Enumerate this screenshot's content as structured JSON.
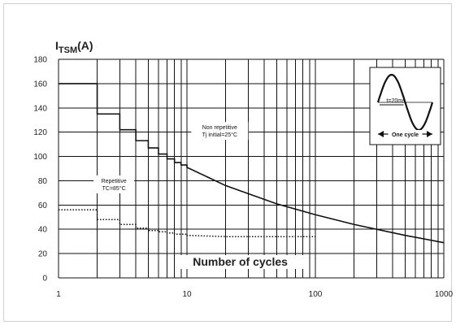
{
  "chart_data": {
    "type": "line",
    "ylabel": "I",
    "ylabel_sub": "TSM",
    "ylabel_unit": "(A)",
    "xlabel": "Number of cycles",
    "x_scale": "log",
    "xlim": [
      1,
      1000
    ],
    "ylim": [
      0,
      180
    ],
    "x_ticks": [
      1,
      10,
      100,
      1000
    ],
    "x_tick_labels": [
      "1",
      "10",
      "100",
      "1000"
    ],
    "y_ticks": [
      0,
      20,
      40,
      60,
      80,
      100,
      120,
      140,
      160,
      180
    ],
    "y_tick_labels": [
      "0",
      "20",
      "40",
      "60",
      "80",
      "100",
      "120",
      "140",
      "160",
      "180"
    ],
    "grid": true,
    "series": [
      {
        "style": "solid",
        "x": [
          1,
          2,
          3,
          4,
          5,
          6,
          7,
          8,
          9,
          10,
          20,
          50,
          100,
          200,
          500,
          1000
        ],
        "y": [
          160,
          135,
          122,
          113,
          107,
          102,
          98,
          95,
          93,
          91,
          76,
          61,
          52,
          44,
          35,
          29
        ]
      },
      {
        "style": "dotted",
        "x": [
          1,
          2,
          3,
          4,
          5,
          6,
          7,
          8,
          9,
          10,
          20,
          50,
          100
        ],
        "y": [
          56,
          48,
          44,
          41,
          39,
          38,
          37,
          36,
          36,
          35,
          34,
          34,
          34
        ]
      }
    ],
    "annotations": [
      {
        "id": "non-repetitive",
        "lines": [
          "Non repetitive",
          "Tj initial=25°C"
        ],
        "x": 18,
        "y": 121
      },
      {
        "id": "repetitive",
        "lines": [
          "Repetitive",
          "TC=85°C"
        ],
        "x": 2.7,
        "y": 77
      }
    ],
    "inset": {
      "period_label": "t=20ms",
      "cycle_label": "One cycle"
    }
  }
}
